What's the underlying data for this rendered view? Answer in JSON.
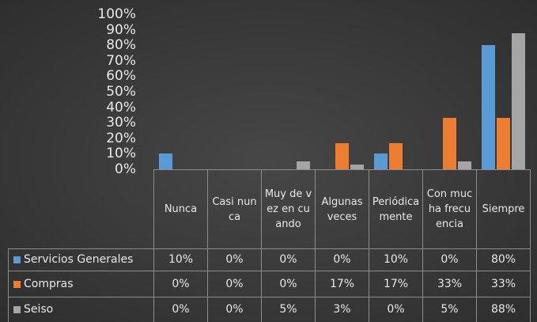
{
  "chart_data": {
    "type": "bar",
    "categories": [
      "Nunca",
      "Casi nunca",
      "Muy de vez en cuando",
      "Algunas veces",
      "Periódicamente",
      "Con mucha frecuencia",
      "Siempre"
    ],
    "series": [
      {
        "name": "Servicios Generales",
        "color": "#5b9bd5",
        "values": [
          10,
          0,
          0,
          0,
          10,
          0,
          80
        ],
        "value_labels": [
          "10%",
          "0%",
          "0%",
          "0%",
          "10%",
          "0%",
          "80%"
        ]
      },
      {
        "name": "Compras",
        "color": "#ed7d31",
        "values": [
          0,
          0,
          0,
          17,
          17,
          33,
          33
        ],
        "value_labels": [
          "0%",
          "0%",
          "0%",
          "17%",
          "17%",
          "33%",
          "33%"
        ]
      },
      {
        "name": "Seiso",
        "color": "#a5a5a5",
        "values": [
          0,
          0,
          5,
          3,
          0,
          5,
          88
        ],
        "value_labels": [
          "0%",
          "0%",
          "5%",
          "3%",
          "0%",
          "5%",
          "88%"
        ]
      }
    ],
    "ylim": [
      0,
      100
    ],
    "yticks": [
      {
        "value": 0,
        "label": "0%"
      },
      {
        "value": 10,
        "label": "10%"
      },
      {
        "value": 20,
        "label": "20%"
      },
      {
        "value": 30,
        "label": "30%"
      },
      {
        "value": 40,
        "label": "40%"
      },
      {
        "value": 50,
        "label": "50%"
      },
      {
        "value": 60,
        "label": "60%"
      },
      {
        "value": 70,
        "label": "70%"
      },
      {
        "value": 80,
        "label": "80%"
      },
      {
        "value": 90,
        "label": "90%"
      },
      {
        "value": 100,
        "label": "100%"
      }
    ],
    "grid": false
  }
}
